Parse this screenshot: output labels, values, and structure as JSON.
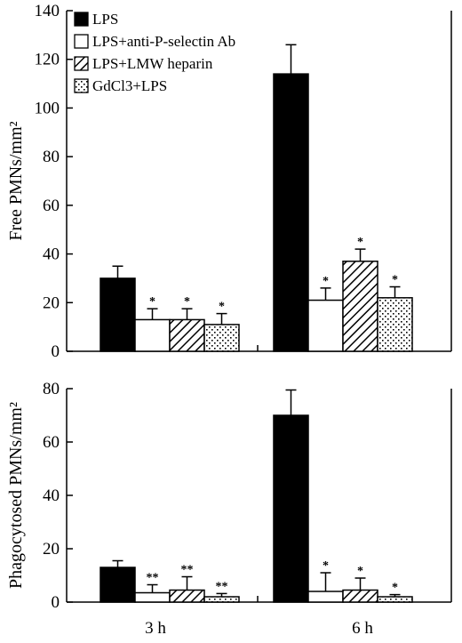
{
  "chart_data": [
    {
      "type": "bar",
      "ylabel": "Free PMNs/mm²",
      "ylim": [
        0,
        140
      ],
      "yticks": [
        0,
        20,
        40,
        60,
        80,
        100,
        120,
        140
      ],
      "categories": [
        "3 h",
        "6 h"
      ],
      "legend_position": "top-left",
      "series": [
        {
          "name": "LPS",
          "pattern": "solid",
          "values": [
            30,
            114
          ],
          "errors": [
            5,
            12
          ],
          "marks": [
            "",
            ""
          ]
        },
        {
          "name": "LPS+anti-P-selectin Ab",
          "pattern": "white",
          "values": [
            13,
            21
          ],
          "errors": [
            4.5,
            5
          ],
          "marks": [
            "*",
            "*"
          ]
        },
        {
          "name": "LPS+LMW heparin",
          "pattern": "hatch",
          "values": [
            13,
            37
          ],
          "errors": [
            4.5,
            5
          ],
          "marks": [
            "*",
            "*"
          ]
        },
        {
          "name": "GdCl3+LPS",
          "pattern": "dots",
          "values": [
            11,
            22
          ],
          "errors": [
            4.5,
            4.5
          ],
          "marks": [
            "*",
            "*"
          ]
        }
      ]
    },
    {
      "type": "bar",
      "ylabel": "Phagocytosed PMNs/mm²",
      "ylim": [
        0,
        80
      ],
      "yticks": [
        0,
        20,
        40,
        60,
        80
      ],
      "categories": [
        "3 h",
        "6 h"
      ],
      "series": [
        {
          "name": "LPS",
          "pattern": "solid",
          "values": [
            13,
            70
          ],
          "errors": [
            2.5,
            9.5
          ],
          "marks": [
            "",
            ""
          ]
        },
        {
          "name": "LPS+anti-P-selectin Ab",
          "pattern": "white",
          "values": [
            3.5,
            4
          ],
          "errors": [
            3,
            7
          ],
          "marks": [
            "**",
            "*"
          ]
        },
        {
          "name": "LPS+LMW heparin",
          "pattern": "hatch",
          "values": [
            4.5,
            4.5
          ],
          "errors": [
            5,
            4.5
          ],
          "marks": [
            "**",
            "*"
          ]
        },
        {
          "name": "GdCl3+LPS",
          "pattern": "dots",
          "values": [
            2,
            2
          ],
          "errors": [
            1.2,
            0.8
          ],
          "marks": [
            "**",
            "*"
          ]
        }
      ]
    }
  ]
}
